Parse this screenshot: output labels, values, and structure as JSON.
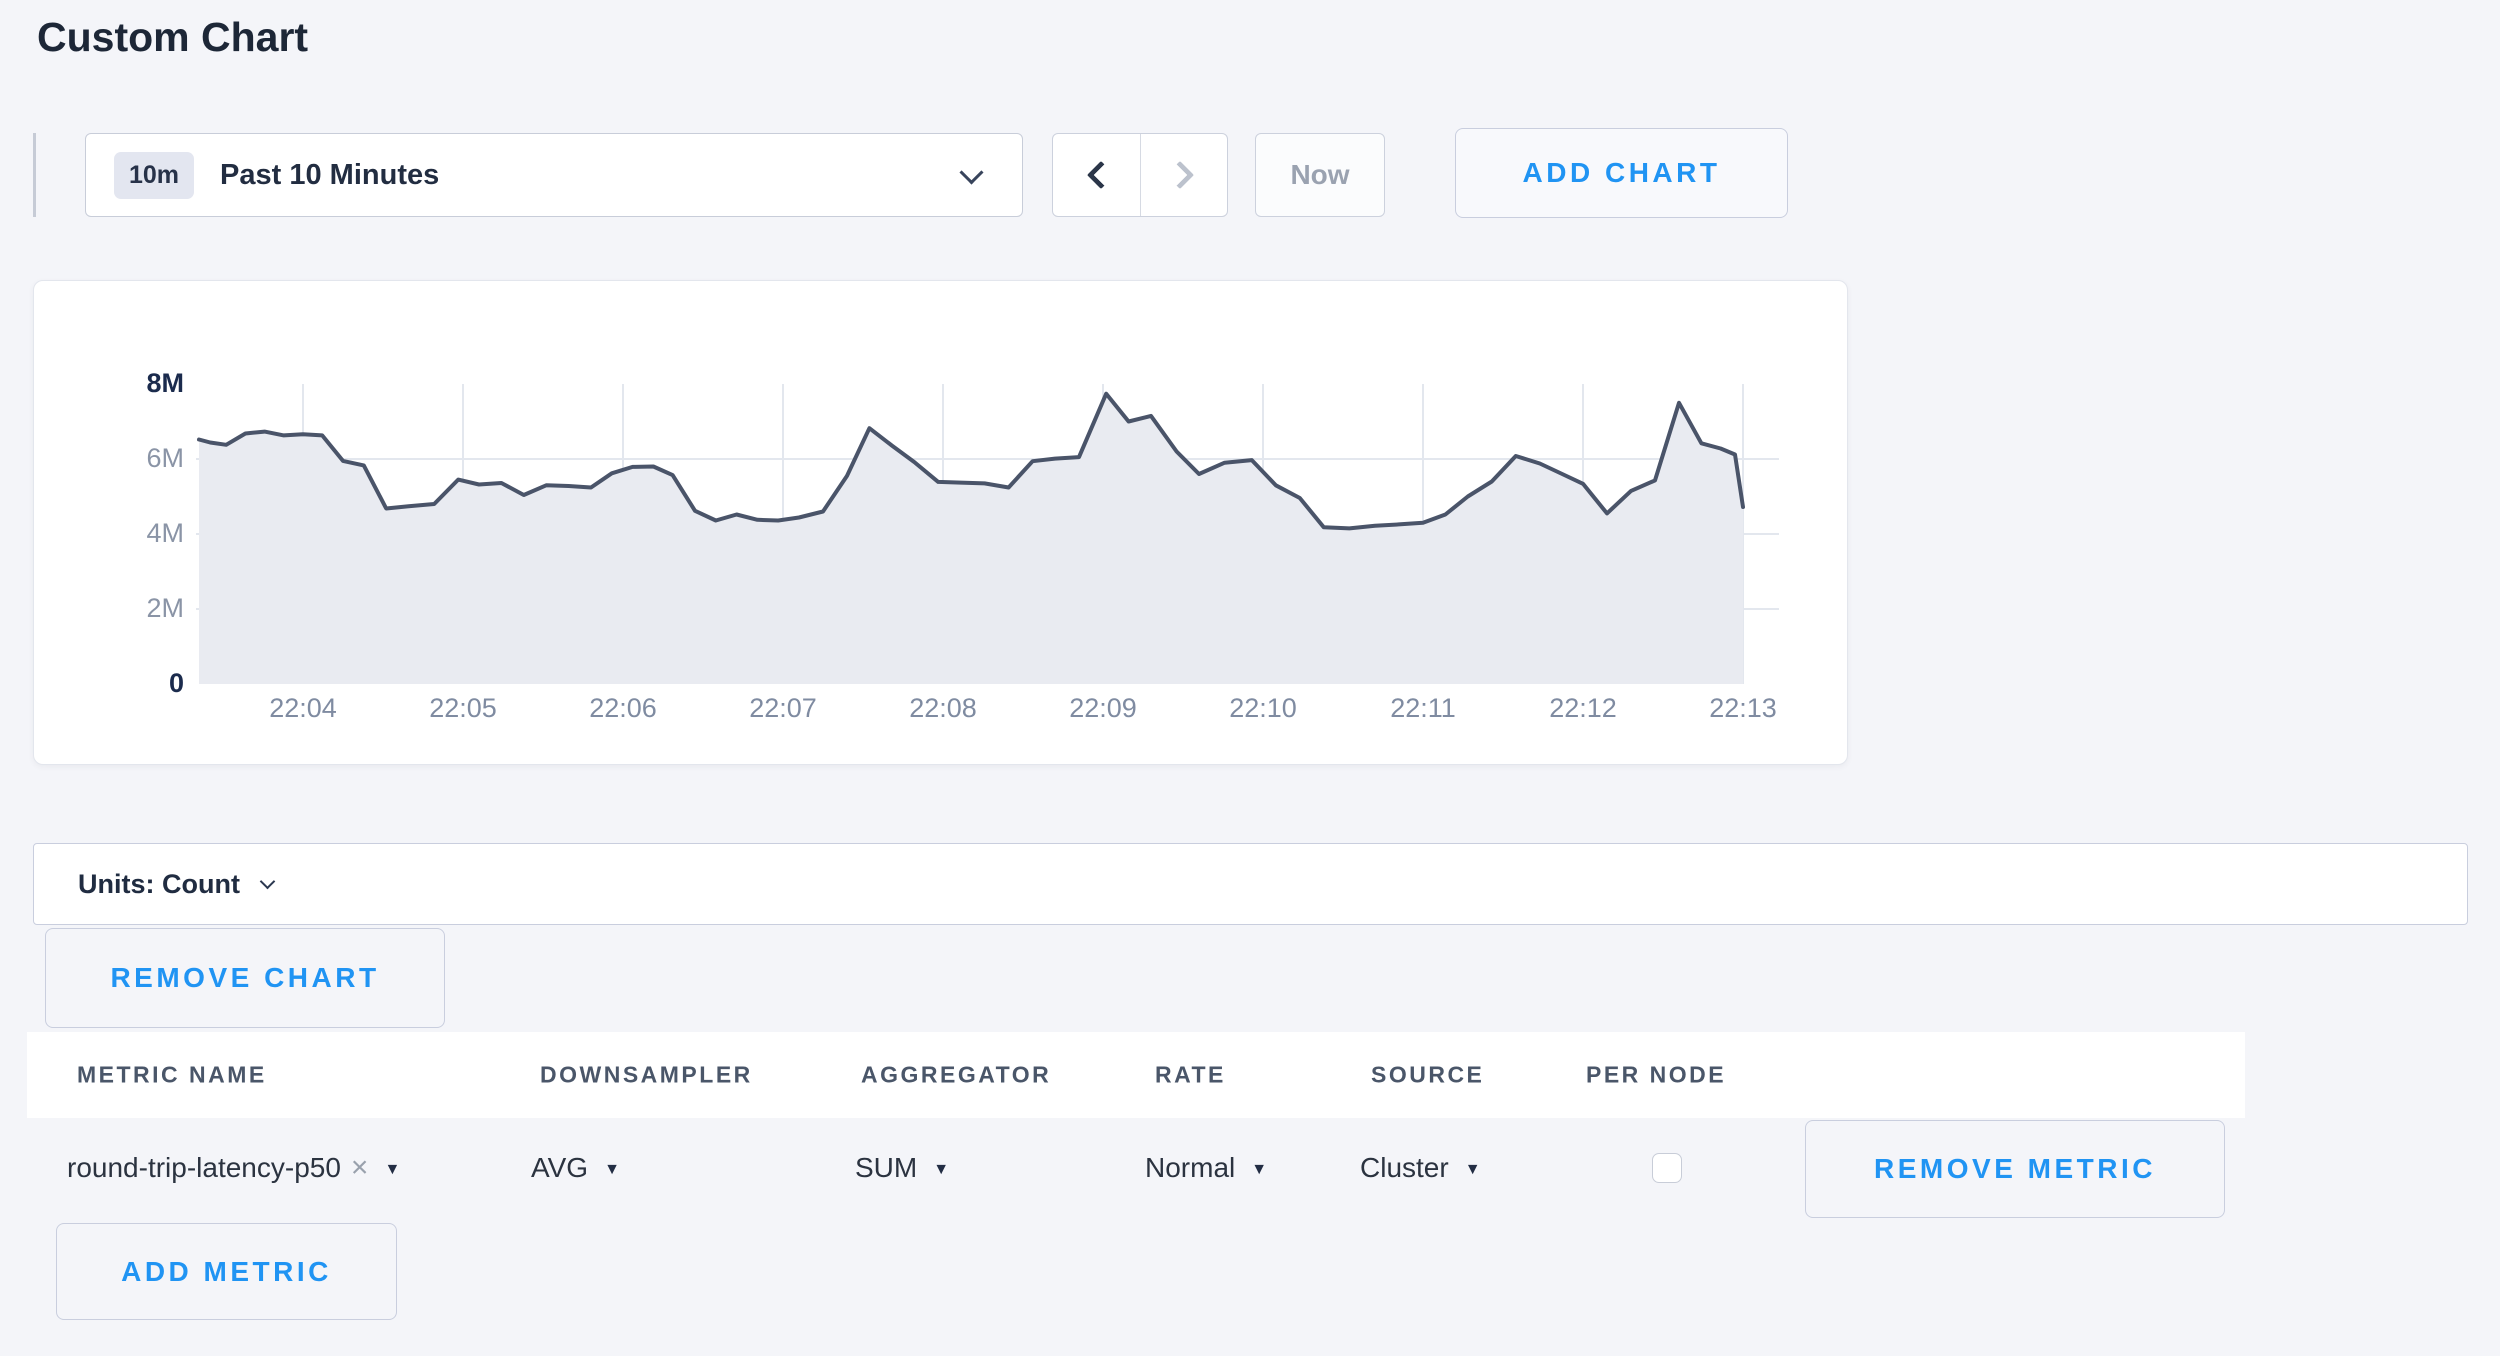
{
  "page": {
    "title": "Custom Chart",
    "background": "#f4f5f9",
    "accent_blue": "#2094f3"
  },
  "toolbar": {
    "time_range": {
      "badge": "10m",
      "label": "Past 10 Minutes"
    },
    "now_label": "Now",
    "add_chart_label": "ADD CHART"
  },
  "chart_data": {
    "type": "area",
    "title": "",
    "units": "Count",
    "legend": "none",
    "grid": {
      "h_lines_M": [
        2,
        4,
        6
      ],
      "v_lines_at_x_ticks": true
    },
    "ylim_M": [
      0,
      8
    ],
    "y_ticks": [
      {
        "v": 0,
        "label": "0",
        "strong": true
      },
      {
        "v": 2,
        "label": "2M",
        "strong": false
      },
      {
        "v": 4,
        "label": "4M",
        "strong": false
      },
      {
        "v": 6,
        "label": "6M",
        "strong": false
      },
      {
        "v": 8,
        "label": "8M",
        "strong": true
      }
    ],
    "x_ticks": [
      {
        "t": 4,
        "label": "22:04"
      },
      {
        "t": 5,
        "label": "22:05"
      },
      {
        "t": 6,
        "label": "22:06"
      },
      {
        "t": 7,
        "label": "22:07"
      },
      {
        "t": 8,
        "label": "22:08"
      },
      {
        "t": 9,
        "label": "22:09"
      },
      {
        "t": 10,
        "label": "22:10"
      },
      {
        "t": 11,
        "label": "22:11"
      },
      {
        "t": 12,
        "label": "22:12"
      },
      {
        "t": 13,
        "label": "22:13"
      }
    ],
    "line_color": "#4a5469",
    "fill_color": "#e9ebf1",
    "grid_color": "#e3e7ee",
    "series": [
      {
        "name": "round-trip-latency-p50",
        "points_t_min_v_M": [
          [
            3.35,
            6.52
          ],
          [
            3.42,
            6.44
          ],
          [
            3.52,
            6.38
          ],
          [
            3.64,
            6.68
          ],
          [
            3.76,
            6.73
          ],
          [
            3.88,
            6.63
          ],
          [
            4.0,
            6.66
          ],
          [
            4.12,
            6.63
          ],
          [
            4.25,
            5.95
          ],
          [
            4.38,
            5.83
          ],
          [
            4.52,
            4.68
          ],
          [
            4.66,
            4.74
          ],
          [
            4.82,
            4.8
          ],
          [
            4.97,
            5.45
          ],
          [
            5.1,
            5.32
          ],
          [
            5.24,
            5.36
          ],
          [
            5.38,
            5.04
          ],
          [
            5.52,
            5.3
          ],
          [
            5.66,
            5.28
          ],
          [
            5.8,
            5.24
          ],
          [
            5.93,
            5.62
          ],
          [
            6.06,
            5.79
          ],
          [
            6.19,
            5.8
          ],
          [
            6.31,
            5.57
          ],
          [
            6.45,
            4.62
          ],
          [
            6.58,
            4.36
          ],
          [
            6.71,
            4.52
          ],
          [
            6.84,
            4.38
          ],
          [
            6.97,
            4.36
          ],
          [
            7.1,
            4.44
          ],
          [
            7.25,
            4.6
          ],
          [
            7.4,
            5.55
          ],
          [
            7.54,
            6.82
          ],
          [
            7.68,
            6.36
          ],
          [
            7.82,
            5.92
          ],
          [
            7.97,
            5.39
          ],
          [
            8.11,
            5.37
          ],
          [
            8.26,
            5.35
          ],
          [
            8.41,
            5.24
          ],
          [
            8.56,
            5.94
          ],
          [
            8.7,
            6.01
          ],
          [
            8.85,
            6.05
          ],
          [
            9.02,
            7.74
          ],
          [
            9.16,
            7.0
          ],
          [
            9.3,
            7.15
          ],
          [
            9.46,
            6.2
          ],
          [
            9.6,
            5.6
          ],
          [
            9.76,
            5.9
          ],
          [
            9.93,
            5.97
          ],
          [
            10.08,
            5.3
          ],
          [
            10.23,
            4.96
          ],
          [
            10.38,
            4.18
          ],
          [
            10.54,
            4.15
          ],
          [
            10.7,
            4.22
          ],
          [
            10.86,
            4.26
          ],
          [
            11.0,
            4.3
          ],
          [
            11.14,
            4.52
          ],
          [
            11.28,
            5.0
          ],
          [
            11.43,
            5.4
          ],
          [
            11.58,
            6.08
          ],
          [
            11.73,
            5.88
          ],
          [
            11.87,
            5.6
          ],
          [
            12.0,
            5.34
          ],
          [
            12.15,
            4.55
          ],
          [
            12.3,
            5.15
          ],
          [
            12.45,
            5.43
          ],
          [
            12.6,
            7.5
          ],
          [
            12.74,
            6.42
          ],
          [
            12.86,
            6.28
          ],
          [
            12.95,
            6.12
          ],
          [
            13.0,
            4.72
          ]
        ]
      }
    ]
  },
  "units_bar": {
    "label": "Units: Count"
  },
  "chart_actions": {
    "remove_chart_label": "REMOVE CHART"
  },
  "metrics_table": {
    "headers": [
      "METRIC NAME",
      "DOWNSAMPLER",
      "AGGREGATOR",
      "RATE",
      "SOURCE",
      "PER NODE"
    ],
    "rows": [
      {
        "metric_name": "round-trip-latency-p50",
        "remove_tag": "×",
        "downsampler": "AVG",
        "aggregator": "SUM",
        "rate": "Normal",
        "source": "Cluster",
        "per_node_checked": false,
        "remove_label": "REMOVE METRIC"
      }
    ],
    "add_metric_label": "ADD METRIC"
  }
}
